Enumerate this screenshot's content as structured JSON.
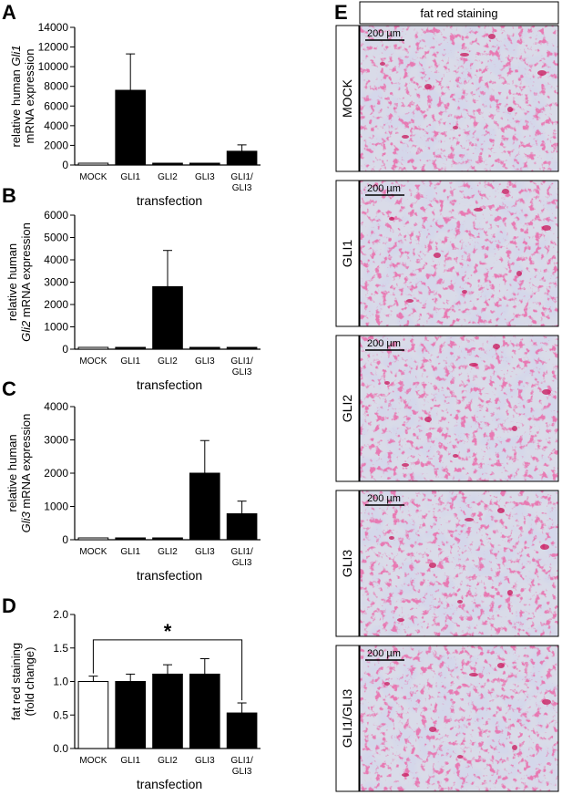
{
  "panels": {
    "A": {
      "letter": "A"
    },
    "B": {
      "letter": "B"
    },
    "C": {
      "letter": "C"
    },
    "D": {
      "letter": "D"
    },
    "E": {
      "letter": "E"
    }
  },
  "chart_data": [
    {
      "panel": "A",
      "type": "bar",
      "categories": [
        "MOCK",
        "GLI1",
        "GLI2",
        "GLI3",
        "GLI1/\nGLI3"
      ],
      "values": [
        0,
        7600,
        0,
        0,
        1400
      ],
      "errors": [
        0,
        3700,
        0,
        0,
        650
      ],
      "fills": [
        "#ffffff",
        "#000000",
        "#000000",
        "#000000",
        "#000000"
      ],
      "ylabel_lines": [
        [
          "relative human ",
          "Gli1"
        ],
        [
          "mRNA expression"
        ]
      ],
      "xlabel": "transfection",
      "ylim": [
        0,
        14000
      ],
      "yticks": [
        0,
        2000,
        4000,
        6000,
        8000,
        10000,
        12000,
        14000
      ],
      "grid": false
    },
    {
      "panel": "B",
      "type": "bar",
      "categories": [
        "MOCK",
        "GLI1",
        "GLI2",
        "GLI3",
        "GLI1/\nGLI3"
      ],
      "values": [
        40,
        55,
        2800,
        40,
        30
      ],
      "errors": [
        0,
        0,
        1620,
        0,
        0
      ],
      "fills": [
        "#ffffff",
        "#000000",
        "#000000",
        "#000000",
        "#000000"
      ],
      "ylabel_lines": [
        [
          "relative human"
        ],
        [
          "Gli2",
          " mRNA expression"
        ]
      ],
      "xlabel": "transfection",
      "ylim": [
        0,
        6000
      ],
      "yticks": [
        0,
        1000,
        2000,
        3000,
        4000,
        5000,
        6000
      ],
      "grid": false
    },
    {
      "panel": "C",
      "type": "bar",
      "categories": [
        "MOCK",
        "GLI1",
        "GLI2",
        "GLI3",
        "GLI1/\nGLI3"
      ],
      "values": [
        30,
        30,
        40,
        2000,
        780
      ],
      "errors": [
        0,
        0,
        0,
        980,
        380
      ],
      "fills": [
        "#ffffff",
        "#000000",
        "#000000",
        "#000000",
        "#000000"
      ],
      "ylabel_lines": [
        [
          "relative human"
        ],
        [
          "Gli3",
          " mRNA expression"
        ]
      ],
      "xlabel": "transfection",
      "ylim": [
        0,
        4000
      ],
      "yticks": [
        0,
        1000,
        2000,
        3000,
        4000
      ],
      "grid": false
    },
    {
      "panel": "D",
      "type": "bar",
      "categories": [
        "MOCK",
        "GLI1",
        "GLI2",
        "GLI3",
        "GLI1/\nGLI3"
      ],
      "values": [
        1.0,
        1.0,
        1.11,
        1.11,
        0.53
      ],
      "errors": [
        0.08,
        0.11,
        0.14,
        0.23,
        0.15
      ],
      "fills": [
        "#ffffff",
        "#000000",
        "#000000",
        "#000000",
        "#000000"
      ],
      "ylabel_lines": [
        [
          "fat red staining"
        ],
        [
          "(fold change)"
        ]
      ],
      "xlabel": "transfection",
      "ylim": [
        0,
        2.0
      ],
      "yticks": [
        0.0,
        0.5,
        1.0,
        1.5,
        2.0
      ],
      "tick_format": "0.0",
      "significance": {
        "from": "MOCK",
        "to": "GLI1/\nGLI3",
        "label": "*"
      },
      "grid": false
    }
  ],
  "staining": {
    "header": "fat red staining",
    "scale_bar": "200 µm",
    "rows": [
      "MOCK",
      "GLI1",
      "GLI2",
      "GLI3",
      "GLI1/GLI3"
    ]
  }
}
